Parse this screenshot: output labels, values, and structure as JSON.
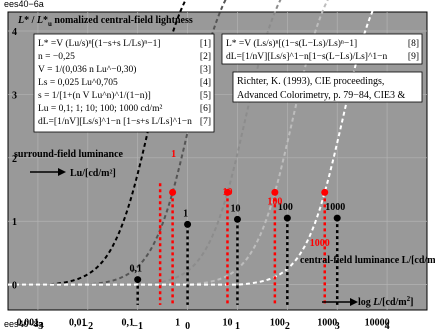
{
  "page_code_top": "ees40−6a",
  "page_code_bottom": "ees40−8a",
  "chart_data": {
    "type": "line",
    "ylabel_main": "L* / L*u  nomalized central-field lightness",
    "ylabel_parts": {
      "L": "L",
      "star": "*",
      "slash": " / ",
      "sub": "u",
      "rest": "  nomalized central-field lightness"
    },
    "xlabel": "log L/[cd/m²]",
    "xlabel_parts": {
      "log": "log ",
      "L": "L",
      "unit": "/[cd/m",
      "sup": "2",
      "close": "]"
    },
    "xlim": [
      -3.6,
      4.8
    ],
    "ylim": [
      -0.4,
      4.3
    ],
    "x_ticks": [
      -3,
      -2,
      -1,
      0,
      1,
      2,
      3,
      4
    ],
    "x_tick_labels": [
      "−3",
      "−2",
      "−1",
      "0",
      "1",
      "2",
      "3",
      "4"
    ],
    "y_ticks": [
      0,
      1,
      2,
      3,
      4
    ],
    "y_tick_labels": [
      "0",
      "1",
      "2",
      "3",
      "4"
    ],
    "lum_tick_labels": [
      {
        "x": -3,
        "label": "0,001"
      },
      {
        "x": -2,
        "label": "0,01"
      },
      {
        "x": -1,
        "label": "0,1"
      },
      {
        "x": 0,
        "label": "1"
      },
      {
        "x": 1,
        "label": "10"
      },
      {
        "x": 2,
        "label": "100"
      },
      {
        "x": 3,
        "label": "1000"
      },
      {
        "x": 4,
        "label": "10000"
      }
    ],
    "central_field_label": "central-field luminance L/[cd/m²]",
    "surround_label_line1": "surround-field luminance",
    "surround_label_line2": "Lu/[cd/m²]",
    "surround_lum_labels": [
      "0,1",
      "1",
      "10",
      "100",
      "1000"
    ],
    "red_labels": [
      "1",
      "10",
      "100",
      "1000"
    ],
    "adaptation_points": [
      {
        "lu": "0,1",
        "logLu": -1,
        "logLs": -1.1,
        "rel": 0.08
      },
      {
        "lu": "1",
        "logLu": 0,
        "logLs": -0.3,
        "rel": 0.95
      },
      {
        "lu": "10",
        "logLu": 1,
        "logLs": 0.8,
        "rel": 1.03
      },
      {
        "lu": "100",
        "logLu": 2,
        "logLs": 1.75,
        "rel": 1.05
      },
      {
        "lu": "1000",
        "logLu": 3,
        "logLs": 2.75,
        "rel": 1.05
      }
    ],
    "series": [
      {
        "name": "0,1",
        "logLs": -1.1,
        "color": "#000000"
      },
      {
        "name": "1",
        "logLs": -0.3,
        "color": "#555555"
      },
      {
        "name": "10",
        "logLs": 0.8,
        "color": "#8c8c8c"
      },
      {
        "name": "100",
        "logLs": 1.75,
        "color": "#bdbdbd"
      },
      {
        "name": "1000",
        "logLs": 2.75,
        "color": "#ffffff"
      }
    ],
    "equations_left": [
      {
        "text": "L* =V (Lu/s)ⁿ[(1−s+s L/Ls)ⁿ−1]",
        "tag": "[1]"
      },
      {
        "text": "n = −0,25",
        "tag": "[2]"
      },
      {
        "text": "V = 1/(0,036 n Lu^−0,30)",
        "tag": "[3]"
      },
      {
        "text": "Ls = 0,025 Lu^0,705",
        "tag": "[4]"
      },
      {
        "text": "s = 1/[1+(n V Lu^n)^1/(1−n)]",
        "tag": "[5]"
      },
      {
        "text": "Lu = 0,1; 1; 10; 100; 1000 cd/m²",
        "tag": "[6]"
      },
      {
        "text": "dL=[1/nV][Ls/s]^1−n [1−s+s L/Ls]^1−n",
        "tag": "[7]"
      }
    ],
    "equations_right": [
      {
        "text": "L* =V (Ls/s)ⁿ[(1−s(L−Ls)/Ls)ⁿ−1]",
        "tag": "[8]"
      },
      {
        "text": "dL=[1/nV][Ls/s]^1−n[1−s(L−Ls)/Ls]^1−n",
        "tag": "[9]"
      }
    ],
    "reference_lines": [
      "Richter, K. (1993), CIE proceedings,",
      "Advanced Colorimetry, p. 79−84, CIE3 &"
    ],
    "grid": true,
    "background_color": "#999999",
    "accent_color": "#ff0000"
  }
}
